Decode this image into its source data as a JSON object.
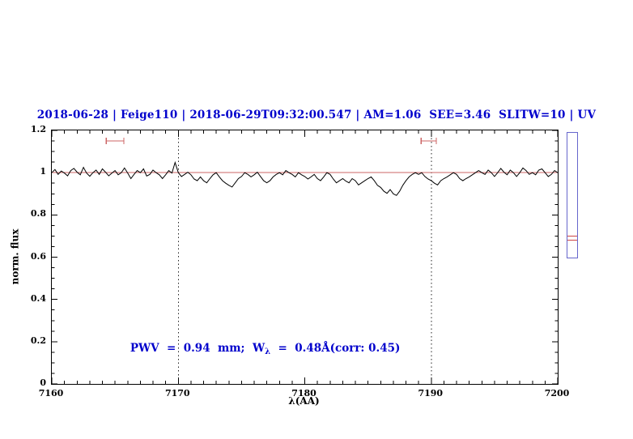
{
  "header": {
    "title": "2018-06-28 | Feige110 | 2018-06-29T09:32:00.547 | AM=1.06  SEE=3.46  SLITW=10 | UV"
  },
  "axes": {
    "xlabel": "λ(AA)",
    "ylabel": "norm. flux",
    "x_tick_labels": [
      "7160",
      "7170",
      "7180",
      "7190",
      "7200"
    ],
    "y_tick_labels": [
      "0",
      "0.2",
      "0.4",
      "0.6",
      "0.8",
      "1",
      "1.2"
    ]
  },
  "annotation": {
    "prefix": "PWV  =  0.94  mm;  W",
    "sub": "λ",
    "suffix": "  =  0.48Å(corr: 0.45)"
  },
  "colors": {
    "title_blue": "#0000cc",
    "annotation_blue": "#0000cc",
    "spectrum_black": "#000000",
    "reference_red": "#cc6666",
    "marker_red": "#cc6666",
    "dotted_black": "#222222",
    "panel_border_blue": "#6666cc",
    "panel_red": "#cc4444"
  },
  "chart_data": {
    "type": "line",
    "title": "2018-06-28 | Feige110 | 2018-06-29T09:32:00.547 | AM=1.06  SEE=3.46  SLITW=10 | UV",
    "xlabel": "λ(AA)",
    "ylabel": "norm. flux",
    "xlim": [
      7160,
      7200
    ],
    "ylim": [
      0,
      1.2
    ],
    "x_major_ticks": [
      7160,
      7170,
      7180,
      7190,
      7200
    ],
    "y_major_ticks": [
      0,
      0.2,
      0.4,
      0.6,
      0.8,
      1,
      1.2
    ],
    "x_minor_step": 1,
    "y_minor_step": 0.05,
    "grid": false,
    "legend": null,
    "reference_lines": {
      "horizontal_red_y": 1.0,
      "vertical_dotted_x": [
        7170,
        7190
      ]
    },
    "markers": [
      {
        "type": "horizontal-errorbar",
        "x_center": 7165.0,
        "x_halfwidth": 0.7,
        "y": 1.15
      },
      {
        "type": "horizontal-errorbar",
        "x_center": 7189.8,
        "x_halfwidth": 0.6,
        "y": 1.15
      }
    ],
    "annotation": "PWV = 0.94 mm; W_λ = 0.48Å(corr: 0.45)",
    "series": [
      {
        "name": "observed spectrum",
        "x_start": 7160,
        "x_step": 0.25,
        "y": [
          1.0,
          1.015,
          0.992,
          1.008,
          0.998,
          0.985,
          1.01,
          1.02,
          1.002,
          0.99,
          1.025,
          0.998,
          0.983,
          1.0,
          1.012,
          0.992,
          1.018,
          1.002,
          0.985,
          0.998,
          1.01,
          0.99,
          1.0,
          1.022,
          0.998,
          0.972,
          0.992,
          1.01,
          1.0,
          1.018,
          0.984,
          0.992,
          1.012,
          1.0,
          0.99,
          0.972,
          0.99,
          1.01,
          0.998,
          1.048,
          1.0,
          0.982,
          0.992,
          1.002,
          0.99,
          0.97,
          0.962,
          0.98,
          0.962,
          0.952,
          0.972,
          0.99,
          1.0,
          0.98,
          0.962,
          0.95,
          0.94,
          0.932,
          0.952,
          0.972,
          0.982,
          1.0,
          0.992,
          0.98,
          0.99,
          1.002,
          0.982,
          0.962,
          0.952,
          0.962,
          0.98,
          0.992,
          1.0,
          0.99,
          1.01,
          1.0,
          0.992,
          0.98,
          1.0,
          0.99,
          0.982,
          0.97,
          0.98,
          0.992,
          0.972,
          0.962,
          0.98,
          1.0,
          0.992,
          0.97,
          0.952,
          0.962,
          0.972,
          0.96,
          0.952,
          0.972,
          0.962,
          0.942,
          0.952,
          0.962,
          0.972,
          0.98,
          0.962,
          0.94,
          0.93,
          0.912,
          0.902,
          0.92,
          0.9,
          0.892,
          0.912,
          0.94,
          0.962,
          0.98,
          0.992,
          1.0,
          0.992,
          1.0,
          0.982,
          0.97,
          0.962,
          0.95,
          0.942,
          0.962,
          0.972,
          0.98,
          0.99,
          1.0,
          0.992,
          0.972,
          0.962,
          0.972,
          0.98,
          0.99,
          1.0,
          1.01,
          1.0,
          0.992,
          1.012,
          1.0,
          0.982,
          1.0,
          1.02,
          1.002,
          0.99,
          1.012,
          1.0,
          0.982,
          1.0,
          1.022,
          1.01,
          0.992,
          1.0,
          0.99,
          1.012,
          1.018,
          1.0,
          0.982,
          0.992,
          1.01,
          1.0
        ]
      }
    ]
  }
}
